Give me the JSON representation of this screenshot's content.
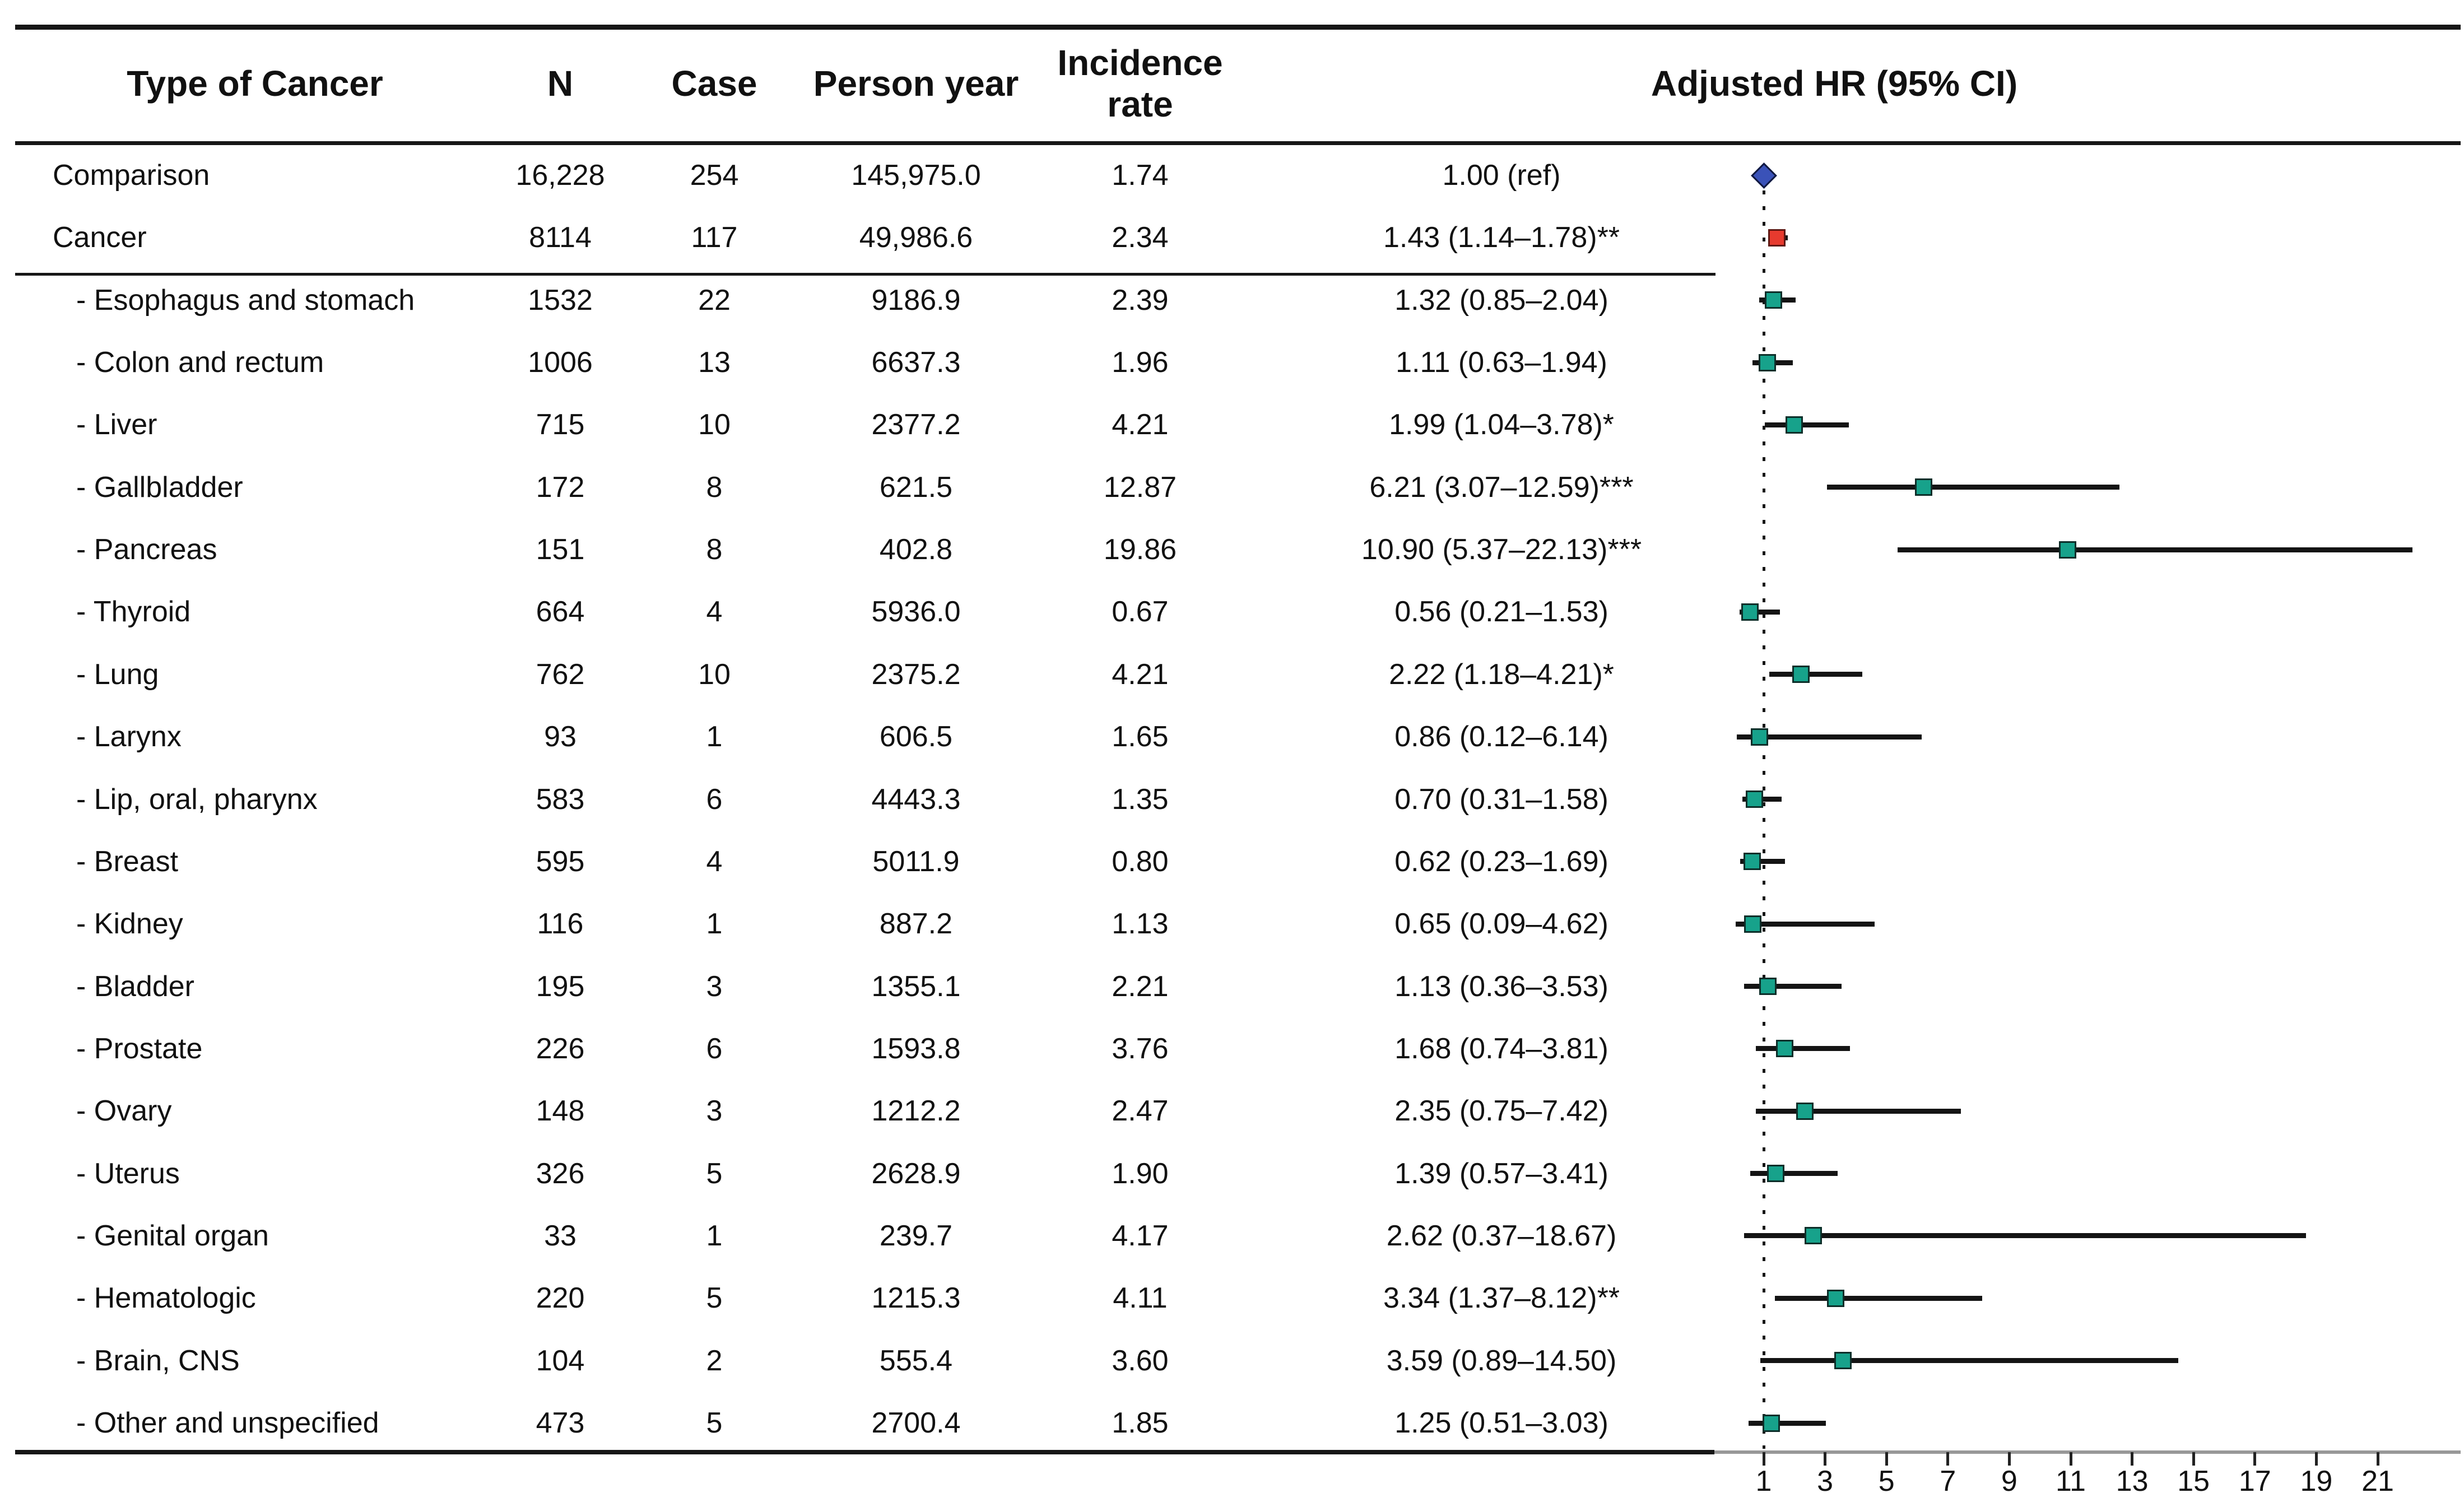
{
  "header": {
    "type_of_cancer": "Type of Cancer",
    "n": "N",
    "case": "Case",
    "person_year": "Person year",
    "incidence_rate": "Incidence rate",
    "adjusted_hr": "Adjusted HR (95% CI)"
  },
  "colors": {
    "reference_marker": "#3a52b8",
    "cancer_marker": "#e63a2e",
    "subtype_marker": "#17a28b",
    "ci_line": "#141414",
    "axis_line": "#989898",
    "dotted_reference_line": "#151515",
    "rule_line": "#161616",
    "text": "#111111"
  },
  "chart_data": {
    "type": "forest",
    "title": "Adjusted HR (95% CI)",
    "x_axis": {
      "ticks": [
        1,
        3,
        5,
        7,
        9,
        11,
        13,
        15,
        17,
        19,
        21
      ],
      "reference_value": 1,
      "scale": "linear"
    },
    "legend": "none",
    "rows": [
      {
        "label": "Comparison",
        "indent": false,
        "n": "16,228",
        "case": "254",
        "person_year": "145,975.0",
        "incidence_rate": "1.74",
        "hr_text": "1.00 (ref)",
        "hr": 1.0,
        "ci_low": null,
        "ci_high": null,
        "marker": "diamond-blue"
      },
      {
        "label": "Cancer",
        "indent": false,
        "n": "8114",
        "case": "117",
        "person_year": "49,986.6",
        "incidence_rate": "2.34",
        "hr_text": "1.43 (1.14–1.78)**",
        "hr": 1.43,
        "ci_low": 1.14,
        "ci_high": 1.78,
        "marker": "square-red"
      },
      {
        "label": "- Esophagus and stomach",
        "indent": true,
        "n": "1532",
        "case": "22",
        "person_year": "9186.9",
        "incidence_rate": "2.39",
        "hr_text": "1.32 (0.85–2.04)",
        "hr": 1.32,
        "ci_low": 0.85,
        "ci_high": 2.04,
        "marker": "square-teal"
      },
      {
        "label": "- Colon and rectum",
        "indent": true,
        "n": "1006",
        "case": "13",
        "person_year": "6637.3",
        "incidence_rate": "1.96",
        "hr_text": "1.11 (0.63–1.94)",
        "hr": 1.11,
        "ci_low": 0.63,
        "ci_high": 1.94,
        "marker": "square-teal"
      },
      {
        "label": "- Liver",
        "indent": true,
        "n": "715",
        "case": "10",
        "person_year": "2377.2",
        "incidence_rate": "4.21",
        "hr_text": "1.99 (1.04–3.78)*",
        "hr": 1.99,
        "ci_low": 1.04,
        "ci_high": 3.78,
        "marker": "square-teal"
      },
      {
        "label": "- Gallbladder",
        "indent": true,
        "n": "172",
        "case": "8",
        "person_year": "621.5",
        "incidence_rate": "12.87",
        "hr_text": "6.21 (3.07–12.59)***",
        "hr": 6.21,
        "ci_low": 3.07,
        "ci_high": 12.59,
        "marker": "square-teal"
      },
      {
        "label": "- Pancreas",
        "indent": true,
        "n": "151",
        "case": "8",
        "person_year": "402.8",
        "incidence_rate": "19.86",
        "hr_text": "10.90 (5.37–22.13)***",
        "hr": 10.9,
        "ci_low": 5.37,
        "ci_high": 22.13,
        "marker": "square-teal"
      },
      {
        "label": "- Thyroid",
        "indent": true,
        "n": "664",
        "case": "4",
        "person_year": "5936.0",
        "incidence_rate": "0.67",
        "hr_text": "0.56 (0.21–1.53)",
        "hr": 0.56,
        "ci_low": 0.21,
        "ci_high": 1.53,
        "marker": "square-teal"
      },
      {
        "label": "- Lung",
        "indent": true,
        "n": "762",
        "case": "10",
        "person_year": "2375.2",
        "incidence_rate": "4.21",
        "hr_text": "2.22 (1.18–4.21)*",
        "hr": 2.22,
        "ci_low": 1.18,
        "ci_high": 4.21,
        "marker": "square-teal"
      },
      {
        "label": "- Larynx",
        "indent": true,
        "n": "93",
        "case": "1",
        "person_year": "606.5",
        "incidence_rate": "1.65",
        "hr_text": "0.86 (0.12–6.14)",
        "hr": 0.86,
        "ci_low": 0.12,
        "ci_high": 6.14,
        "marker": "square-teal"
      },
      {
        "label": "- Lip, oral, pharynx",
        "indent": true,
        "n": "583",
        "case": "6",
        "person_year": "4443.3",
        "incidence_rate": "1.35",
        "hr_text": "0.70 (0.31–1.58)",
        "hr": 0.7,
        "ci_low": 0.31,
        "ci_high": 1.58,
        "marker": "square-teal"
      },
      {
        "label": "- Breast",
        "indent": true,
        "n": "595",
        "case": "4",
        "person_year": "5011.9",
        "incidence_rate": "0.80",
        "hr_text": "0.62 (0.23–1.69)",
        "hr": 0.62,
        "ci_low": 0.23,
        "ci_high": 1.69,
        "marker": "square-teal"
      },
      {
        "label": "- Kidney",
        "indent": true,
        "n": "116",
        "case": "1",
        "person_year": "887.2",
        "incidence_rate": "1.13",
        "hr_text": "0.65 (0.09–4.62)",
        "hr": 0.65,
        "ci_low": 0.09,
        "ci_high": 4.62,
        "marker": "square-teal"
      },
      {
        "label": "- Bladder",
        "indent": true,
        "n": "195",
        "case": "3",
        "person_year": "1355.1",
        "incidence_rate": "2.21",
        "hr_text": "1.13 (0.36–3.53)",
        "hr": 1.13,
        "ci_low": 0.36,
        "ci_high": 3.53,
        "marker": "square-teal"
      },
      {
        "label": "- Prostate",
        "indent": true,
        "n": "226",
        "case": "6",
        "person_year": "1593.8",
        "incidence_rate": "3.76",
        "hr_text": "1.68 (0.74–3.81)",
        "hr": 1.68,
        "ci_low": 0.74,
        "ci_high": 3.81,
        "marker": "square-teal"
      },
      {
        "label": "- Ovary",
        "indent": true,
        "n": "148",
        "case": "3",
        "person_year": "1212.2",
        "incidence_rate": "2.47",
        "hr_text": "2.35 (0.75–7.42)",
        "hr": 2.35,
        "ci_low": 0.75,
        "ci_high": 7.42,
        "marker": "square-teal"
      },
      {
        "label": "- Uterus",
        "indent": true,
        "n": "326",
        "case": "5",
        "person_year": "2628.9",
        "incidence_rate": "1.90",
        "hr_text": "1.39 (0.57–3.41)",
        "hr": 1.39,
        "ci_low": 0.57,
        "ci_high": 3.41,
        "marker": "square-teal"
      },
      {
        "label": "- Genital organ",
        "indent": true,
        "n": "33",
        "case": "1",
        "person_year": "239.7",
        "incidence_rate": "4.17",
        "hr_text": "2.62 (0.37–18.67)",
        "hr": 2.62,
        "ci_low": 0.37,
        "ci_high": 18.67,
        "marker": "square-teal"
      },
      {
        "label": "- Hematologic",
        "indent": true,
        "n": "220",
        "case": "5",
        "person_year": "1215.3",
        "incidence_rate": "4.11",
        "hr_text": "3.34 (1.37–8.12)**",
        "hr": 3.34,
        "ci_low": 1.37,
        "ci_high": 8.12,
        "marker": "square-teal"
      },
      {
        "label": "- Brain, CNS",
        "indent": true,
        "n": "104",
        "case": "2",
        "person_year": "555.4",
        "incidence_rate": "3.60",
        "hr_text": "3.59 (0.89–14.50)",
        "hr": 3.59,
        "ci_low": 0.89,
        "ci_high": 14.5,
        "marker": "square-teal"
      },
      {
        "label": "- Other and unspecified",
        "indent": true,
        "n": "473",
        "case": "5",
        "person_year": "2700.4",
        "incidence_rate": "1.85",
        "hr_text": "1.25 (0.51–3.03)",
        "hr": 1.25,
        "ci_low": 0.51,
        "ci_high": 3.03,
        "marker": "square-teal"
      }
    ]
  }
}
